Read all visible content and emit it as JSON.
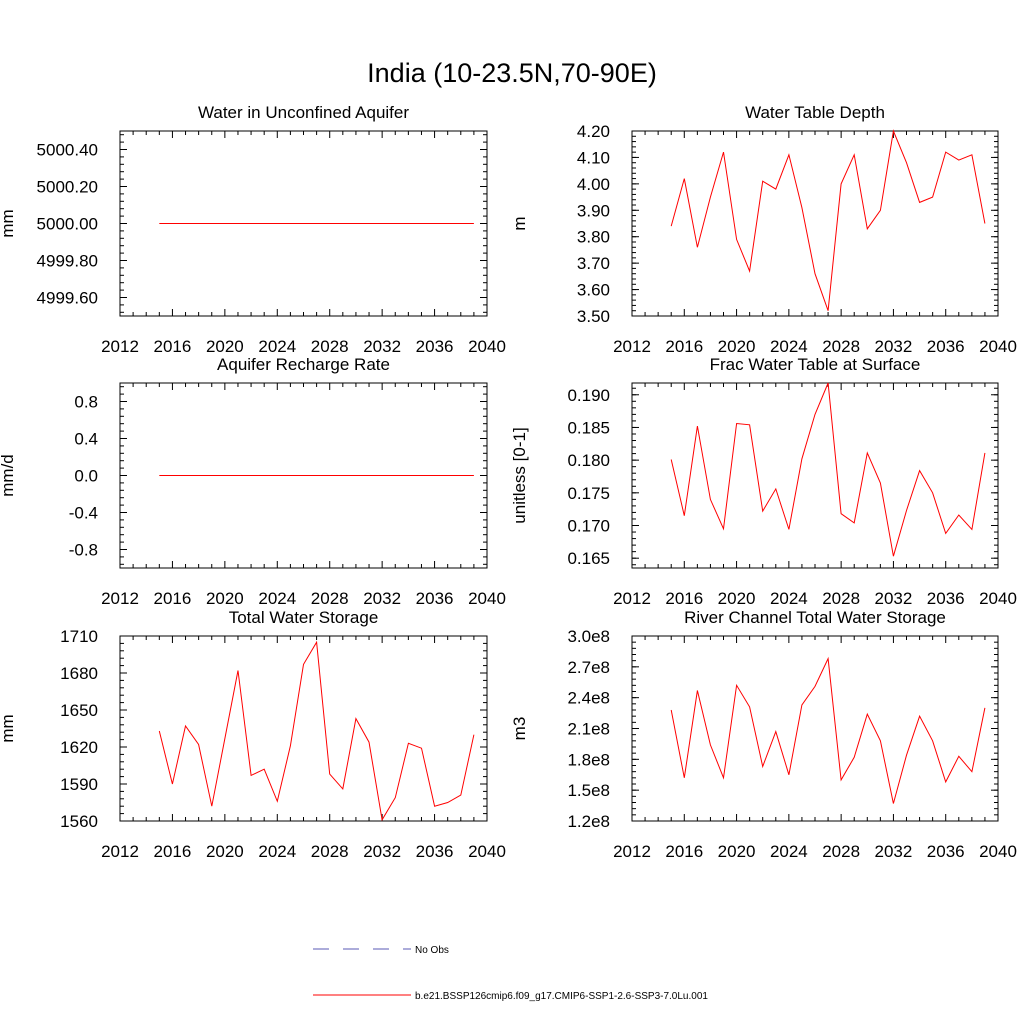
{
  "title": "India (10-23.5N,70-90E)",
  "colors": {
    "model": "#ff0000",
    "obs": "#5a5ab4",
    "axis": "#000000"
  },
  "legend": {
    "entries": [
      {
        "label": "No Obs",
        "style": "dashed",
        "color": "#5a5ab4"
      },
      {
        "label": "b.e21.BSSP126cmip6.f09_g17.CMIP6-SSP1-2.6-SSP3-7.0Lu.001",
        "style": "solid",
        "color": "#ff0000"
      }
    ]
  },
  "chart_data": [
    {
      "type": "line",
      "title": "Water in Unconfined Aquifer",
      "ylabel": "mm",
      "xlim": [
        2012,
        2040
      ],
      "ylim": [
        4999.5,
        5000.5
      ],
      "xticks": [
        "2012",
        "2016",
        "2020",
        "2024",
        "2028",
        "2032",
        "2036",
        "2040"
      ],
      "yticks": [
        {
          "v": 4999.6,
          "label": "4999.60"
        },
        {
          "v": 4999.8,
          "label": "4999.80"
        },
        {
          "v": 5000.0,
          "label": "5000.00"
        },
        {
          "v": 5000.2,
          "label": "5000.20"
        },
        {
          "v": 5000.4,
          "label": "5000.40"
        }
      ],
      "x": [
        2015,
        2016,
        2017,
        2018,
        2019,
        2020,
        2021,
        2022,
        2023,
        2024,
        2025,
        2026,
        2027,
        2028,
        2029,
        2030,
        2031,
        2032,
        2033,
        2034,
        2035,
        2036,
        2037,
        2038,
        2039
      ],
      "series": [
        {
          "values": [
            5000,
            5000,
            5000,
            5000,
            5000,
            5000,
            5000,
            5000,
            5000,
            5000,
            5000,
            5000,
            5000,
            5000,
            5000,
            5000,
            5000,
            5000,
            5000,
            5000,
            5000,
            5000,
            5000,
            5000,
            5000
          ]
        }
      ]
    },
    {
      "type": "line",
      "title": "Water Table Depth",
      "ylabel": "m",
      "xlim": [
        2012,
        2040
      ],
      "ylim": [
        3.5,
        4.2
      ],
      "xticks": [
        "2012",
        "2016",
        "2020",
        "2024",
        "2028",
        "2032",
        "2036",
        "2040"
      ],
      "yticks": [
        {
          "v": 3.5,
          "label": "3.50"
        },
        {
          "v": 3.6,
          "label": "3.60"
        },
        {
          "v": 3.7,
          "label": "3.70"
        },
        {
          "v": 3.8,
          "label": "3.80"
        },
        {
          "v": 3.9,
          "label": "3.90"
        },
        {
          "v": 4.0,
          "label": "4.00"
        },
        {
          "v": 4.1,
          "label": "4.10"
        },
        {
          "v": 4.2,
          "label": "4.20"
        }
      ],
      "x": [
        2015,
        2016,
        2017,
        2018,
        2019,
        2020,
        2021,
        2022,
        2023,
        2024,
        2025,
        2026,
        2027,
        2028,
        2029,
        2030,
        2031,
        2032,
        2033,
        2034,
        2035,
        2036,
        2037,
        2038,
        2039
      ],
      "series": [
        {
          "values": [
            3.84,
            4.02,
            3.76,
            3.95,
            4.12,
            3.79,
            3.67,
            4.01,
            3.98,
            4.11,
            3.91,
            3.66,
            3.52,
            4.0,
            4.11,
            3.83,
            3.9,
            4.2,
            4.08,
            3.93,
            3.95,
            4.12,
            4.09,
            4.11,
            3.85
          ]
        }
      ]
    },
    {
      "type": "line",
      "title": "Aquifer Recharge Rate",
      "ylabel": "mm/d",
      "xlim": [
        2012,
        2040
      ],
      "ylim": [
        -1.0,
        1.0
      ],
      "xticks": [
        "2012",
        "2016",
        "2020",
        "2024",
        "2028",
        "2032",
        "2036",
        "2040"
      ],
      "yticks": [
        {
          "v": -0.8,
          "label": "-0.8"
        },
        {
          "v": -0.4,
          "label": "-0.4"
        },
        {
          "v": 0.0,
          "label": "0.0"
        },
        {
          "v": 0.4,
          "label": "0.4"
        },
        {
          "v": 0.8,
          "label": "0.8"
        }
      ],
      "x": [
        2015,
        2016,
        2017,
        2018,
        2019,
        2020,
        2021,
        2022,
        2023,
        2024,
        2025,
        2026,
        2027,
        2028,
        2029,
        2030,
        2031,
        2032,
        2033,
        2034,
        2035,
        2036,
        2037,
        2038,
        2039
      ],
      "series": [
        {
          "values": [
            0,
            0,
            0,
            0,
            0,
            0,
            0,
            0,
            0,
            0,
            0,
            0,
            0,
            0,
            0,
            0,
            0,
            0,
            0,
            0,
            0,
            0,
            0,
            0,
            0
          ]
        }
      ]
    },
    {
      "type": "line",
      "title": "Frac Water Table at Surface",
      "ylabel": "unitless [0-1]",
      "xlim": [
        2012,
        2040
      ],
      "ylim": [
        0.1635,
        0.1918
      ],
      "xticks": [
        "2012",
        "2016",
        "2020",
        "2024",
        "2028",
        "2032",
        "2036",
        "2040"
      ],
      "yticks": [
        {
          "v": 0.165,
          "label": "0.165"
        },
        {
          "v": 0.17,
          "label": "0.170"
        },
        {
          "v": 0.175,
          "label": "0.175"
        },
        {
          "v": 0.18,
          "label": "0.180"
        },
        {
          "v": 0.185,
          "label": "0.185"
        },
        {
          "v": 0.19,
          "label": "0.190"
        }
      ],
      "x": [
        2015,
        2016,
        2017,
        2018,
        2019,
        2020,
        2021,
        2022,
        2023,
        2024,
        2025,
        2026,
        2027,
        2028,
        2029,
        2030,
        2031,
        2032,
        2033,
        2034,
        2035,
        2036,
        2037,
        2038,
        2039
      ],
      "series": [
        {
          "values": [
            0.1801,
            0.1715,
            0.1852,
            0.174,
            0.1695,
            0.1856,
            0.1854,
            0.1722,
            0.1756,
            0.1694,
            0.1802,
            0.187,
            0.1918,
            0.1718,
            0.1704,
            0.1811,
            0.1765,
            0.1653,
            0.1723,
            0.1784,
            0.175,
            0.1688,
            0.1716,
            0.1694,
            0.1811
          ]
        }
      ]
    },
    {
      "type": "line",
      "title": "Total Water Storage",
      "ylabel": "mm",
      "xlim": [
        2012,
        2040
      ],
      "ylim": [
        1560,
        1710
      ],
      "xticks": [
        "2012",
        "2016",
        "2020",
        "2024",
        "2028",
        "2032",
        "2036",
        "2040"
      ],
      "yticks": [
        {
          "v": 1560,
          "label": "1560"
        },
        {
          "v": 1590,
          "label": "1590"
        },
        {
          "v": 1620,
          "label": "1620"
        },
        {
          "v": 1650,
          "label": "1650"
        },
        {
          "v": 1680,
          "label": "1680"
        },
        {
          "v": 1710,
          "label": "1710"
        }
      ],
      "x": [
        2015,
        2016,
        2017,
        2018,
        2019,
        2020,
        2021,
        2022,
        2023,
        2024,
        2025,
        2026,
        2027,
        2028,
        2029,
        2030,
        2031,
        2032,
        2033,
        2034,
        2035,
        2036,
        2037,
        2038,
        2039
      ],
      "series": [
        {
          "values": [
            1633,
            1590,
            1637,
            1622,
            1572,
            1627,
            1682,
            1597,
            1602,
            1576,
            1621,
            1687,
            1705,
            1598,
            1586,
            1643,
            1624,
            1561,
            1579,
            1623,
            1619,
            1572,
            1575,
            1581,
            1630
          ]
        }
      ]
    },
    {
      "type": "line",
      "title": "River Channel Total Water Storage",
      "ylabel": "m3",
      "xlim": [
        2012,
        2040
      ],
      "ylim": [
        120000000.0,
        300000000.0
      ],
      "xticks": [
        "2012",
        "2016",
        "2020",
        "2024",
        "2028",
        "2032",
        "2036",
        "2040"
      ],
      "yticks": [
        {
          "v": 120000000.0,
          "label": "1.2e8"
        },
        {
          "v": 150000000.0,
          "label": "1.5e8"
        },
        {
          "v": 180000000.0,
          "label": "1.8e8"
        },
        {
          "v": 210000000.0,
          "label": "2.1e8"
        },
        {
          "v": 240000000.0,
          "label": "2.4e8"
        },
        {
          "v": 270000000.0,
          "label": "2.7e8"
        },
        {
          "v": 300000000.0,
          "label": "3.0e8"
        }
      ],
      "x": [
        2015,
        2016,
        2017,
        2018,
        2019,
        2020,
        2021,
        2022,
        2023,
        2024,
        2025,
        2026,
        2027,
        2028,
        2029,
        2030,
        2031,
        2032,
        2033,
        2034,
        2035,
        2036,
        2037,
        2038,
        2039
      ],
      "series": [
        {
          "values": [
            228000000.0,
            162000000.0,
            247000000.0,
            194000000.0,
            162000000.0,
            252000000.0,
            231000000.0,
            173000000.0,
            207000000.0,
            165000000.0,
            233000000.0,
            251000000.0,
            278000000.0,
            160000000.0,
            182000000.0,
            224000000.0,
            198000000.0,
            137000000.0,
            184000000.0,
            222000000.0,
            198000000.0,
            158000000.0,
            183000000.0,
            168000000.0,
            230000000.0
          ]
        }
      ]
    }
  ]
}
